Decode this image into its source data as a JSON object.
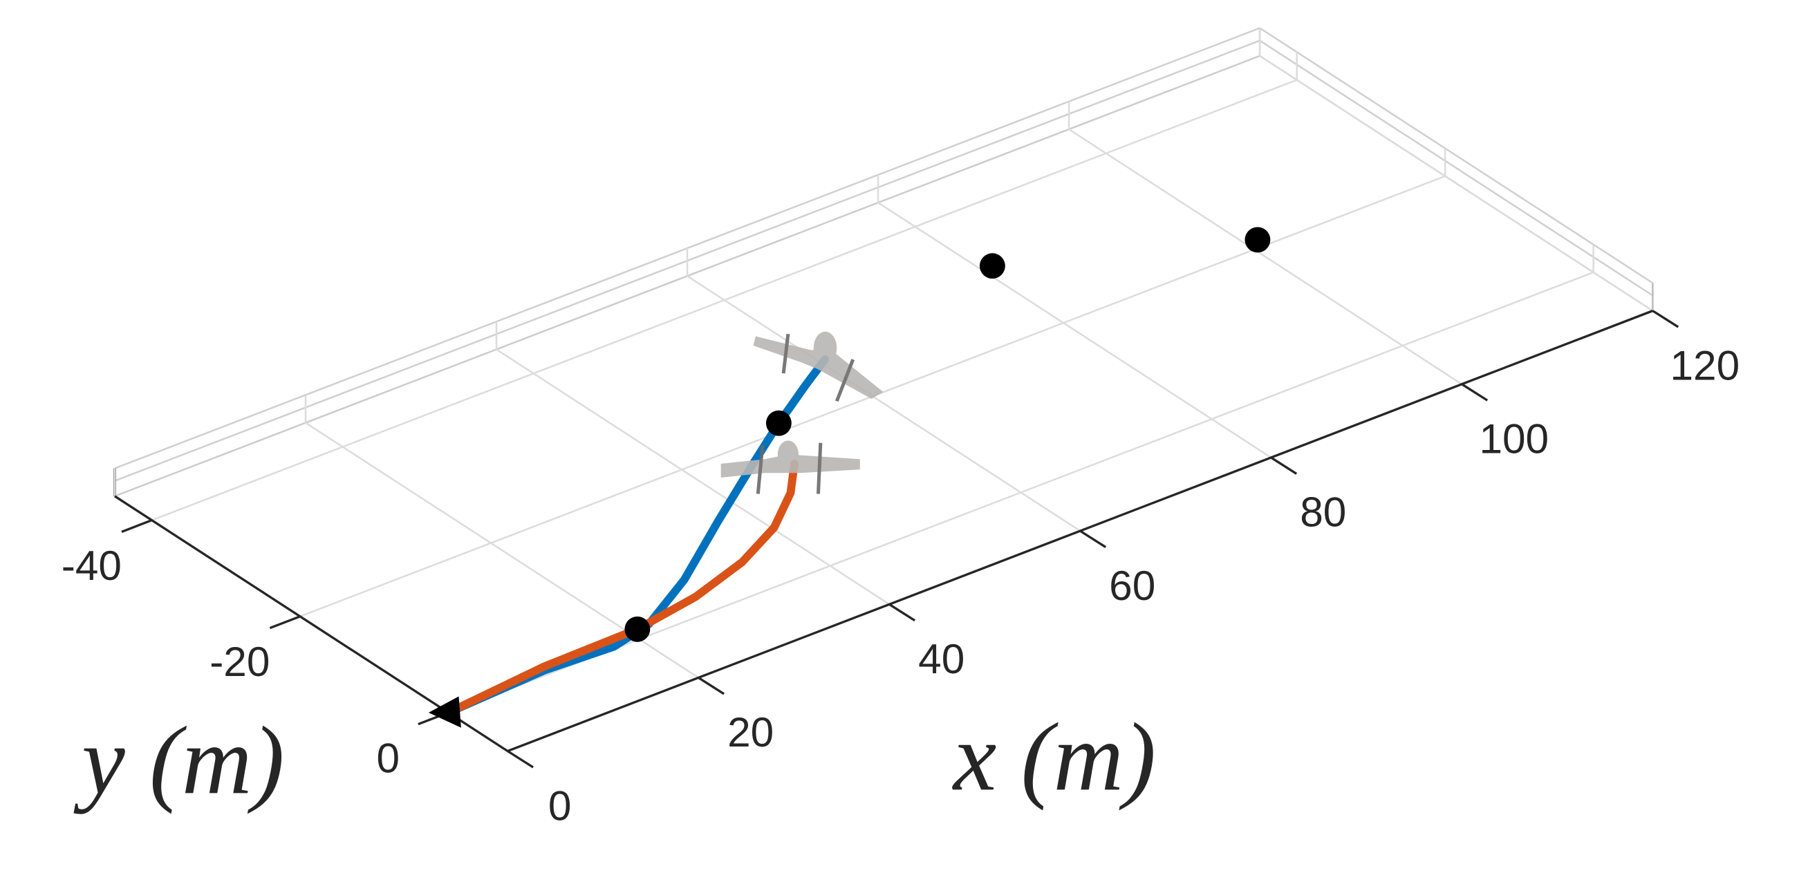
{
  "chart_data": {
    "type": "line3d",
    "xlabel": "x (m)",
    "ylabel": "y (m)",
    "xlim": [
      0,
      120
    ],
    "ylim": [
      -45,
      8
    ],
    "xticks": [
      0,
      20,
      40,
      60,
      80,
      100,
      120
    ],
    "yticks": [
      -40,
      -20,
      0
    ],
    "grid": true,
    "series": [
      {
        "color": "#0072bd",
        "x": [
          0,
          10.7,
          17.6,
          22.2,
          29.0,
          37.1,
          45.3,
          51.1,
          56.7,
          60.6
        ],
        "y": [
          0,
          -0.7,
          -0.3,
          -1.5,
          -5.5,
          -11.4,
          -17.2,
          -21.2,
          -24.8,
          -27.2
        ]
      },
      {
        "color": "#d95319",
        "x": [
          0,
          11.0,
          20.9,
          28.0,
          34.6,
          40.2,
          44.8,
          48.0
        ],
        "y": [
          0,
          -1.2,
          -1.4,
          -2.7,
          -4.9,
          -7.8,
          -11.5,
          -15.1
        ]
      }
    ],
    "waypoints": {
      "color": "#000000",
      "x": [
        20.9,
        51.1,
        81.1,
        101.2
      ],
      "y": [
        -1.4,
        -21.2,
        -31.0,
        -21.1
      ]
    },
    "start": {
      "color": "#000000",
      "x": 0,
      "y": 0
    }
  }
}
